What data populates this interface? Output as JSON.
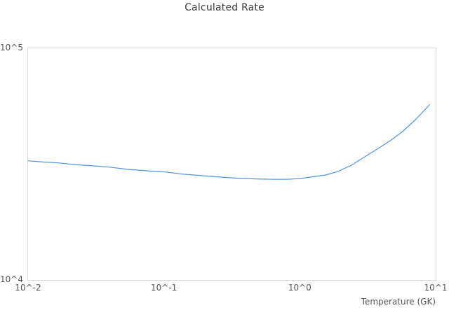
{
  "chart": {
    "colors": {
      "line": "#4f94dc",
      "plot_border": "#d9d9d9",
      "title_text": "#3a3a3a",
      "tick_text": "#555555",
      "background": "#ffffff"
    }
  },
  "chart_data": {
    "type": "line",
    "title": "Calculated Rate",
    "xlabel": "Temperature (GK)",
    "ylabel": "",
    "x_scale": "log",
    "y_scale": "log",
    "xlim": [
      0.01,
      10
    ],
    "ylim": [
      10000,
      100000
    ],
    "grid": false,
    "legend": "none",
    "x_ticks": [
      {
        "label": "10^-2",
        "value": 0.01
      },
      {
        "label": "10^-1",
        "value": 0.1
      },
      {
        "label": "10^0",
        "value": 1
      },
      {
        "label": "10^1",
        "value": 10
      }
    ],
    "y_ticks": [
      {
        "label": "10^4",
        "value": 10000
      },
      {
        "label": "10^5",
        "value": 100000
      }
    ],
    "series": [
      {
        "name": "calculated-rate",
        "x": [
          0.01,
          0.013,
          0.017,
          0.022,
          0.03,
          0.04,
          0.055,
          0.075,
          0.1,
          0.14,
          0.19,
          0.26,
          0.35,
          0.48,
          0.65,
          0.8,
          1.0,
          1.25,
          1.55,
          1.9,
          2.4,
          3.0,
          3.7,
          4.6,
          5.7,
          7.1,
          9.0
        ],
        "y": [
          32700,
          32300,
          32000,
          31500,
          31100,
          30700,
          30000,
          29600,
          29300,
          28600,
          28200,
          27800,
          27500,
          27300,
          27200,
          27200,
          27400,
          27900,
          28400,
          29400,
          31300,
          34000,
          36700,
          39800,
          43700,
          49200,
          57000
        ]
      }
    ]
  }
}
